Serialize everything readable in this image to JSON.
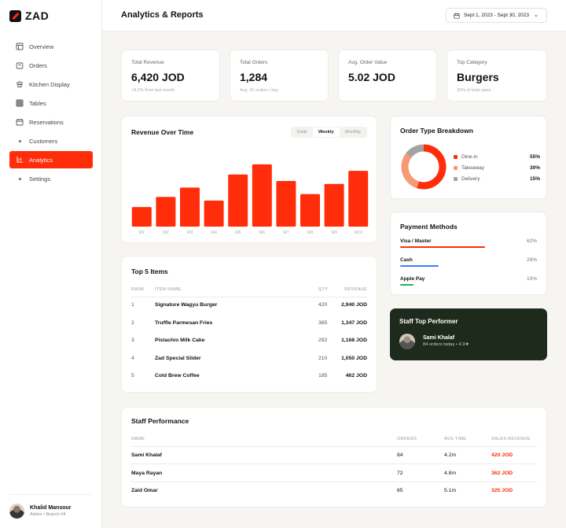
{
  "app": {
    "brand": "ZAD"
  },
  "sidebar": {
    "items": [
      {
        "label": "Overview",
        "icon": "layout-icon",
        "active": false
      },
      {
        "label": "Orders",
        "icon": "bag-icon",
        "active": false
      },
      {
        "label": "Kitchen Display",
        "icon": "chef-icon",
        "active": false
      },
      {
        "label": "Tables",
        "icon": "grid-icon",
        "active": false
      },
      {
        "label": "Reservations",
        "icon": "calendar-icon",
        "active": false
      },
      {
        "label": "Customers",
        "icon": "dot-icon",
        "active": false
      },
      {
        "label": "Analytics",
        "icon": "chart-icon",
        "active": true
      },
      {
        "label": "Settings",
        "icon": "dot-icon",
        "active": false
      }
    ],
    "user": {
      "name": "Khalid Mansour",
      "role": "Admin • Branch 04"
    }
  },
  "header": {
    "title": "Analytics & Reports",
    "date_range": "Sept 1, 2023 - Sept 30, 2023"
  },
  "stats": [
    {
      "label": "Total Revenue",
      "value": "6,420 JOD",
      "sub": "+8.2% from last month"
    },
    {
      "label": "Total Orders",
      "value": "1,284",
      "sub": "Avg. 42 orders / day"
    },
    {
      "label": "Avg. Order Value",
      "value": "5.02 JOD",
      "sub": ""
    },
    {
      "label": "Top Category",
      "value": "Burgers",
      "sub": "35% of total sales"
    }
  ],
  "revenue": {
    "title": "Revenue Over Time",
    "tabs": [
      "Daily",
      "Weekly",
      "Monthly"
    ],
    "active_tab": "Weekly"
  },
  "chart_data": {
    "type": "bar",
    "categories": [
      "W1",
      "W2",
      "W3",
      "W4",
      "W5",
      "W6",
      "W7",
      "W8",
      "W9",
      "W10"
    ],
    "values": [
      27,
      41,
      54,
      36,
      72,
      86,
      63,
      45,
      59,
      77
    ],
    "title": "Revenue Over Time",
    "xlabel": "",
    "ylabel": "",
    "ylim": [
      0,
      100
    ],
    "grid": false,
    "color": "#ff2d0a"
  },
  "order_type": {
    "title": "Order Type Breakdown",
    "segments": [
      {
        "name": "Dine-in",
        "pct": "55%",
        "value": 55,
        "color": "#ff2d0a"
      },
      {
        "name": "Takeaway",
        "pct": "30%",
        "value": 30,
        "color": "#f59a73"
      },
      {
        "name": "Delivery",
        "pct": "15%",
        "value": 15,
        "color": "#a3a3a3"
      }
    ]
  },
  "payment": {
    "title": "Payment Methods",
    "methods": [
      {
        "name": "Visa / Master",
        "pct": "62%",
        "value": 0.62,
        "color": "#ff2d0a"
      },
      {
        "name": "Cash",
        "pct": "28%",
        "value": 0.28,
        "color": "#3b7ff5"
      },
      {
        "name": "Apple Pay",
        "pct": "10%",
        "value": 0.1,
        "color": "#20b26b"
      }
    ]
  },
  "staff_top": {
    "title": "Staff Top Performer",
    "name": "Sami Khalaf",
    "sub": "84 orders today • 4.9★"
  },
  "top_items": {
    "title": "Top 5 Items",
    "headers": {
      "rank": "RANK",
      "name": "ITEM NAME",
      "qty": "QTY",
      "revenue": "REVENUE"
    },
    "rows": [
      {
        "rank": "1",
        "name": "Signature Wagyu Burger",
        "qty": "420",
        "revenue": "2,940 JOD"
      },
      {
        "rank": "2",
        "name": "Truffle Parmesan Fries",
        "qty": "385",
        "revenue": "1,347 JOD"
      },
      {
        "rank": "3",
        "name": "Pistachio Milk Cake",
        "qty": "292",
        "revenue": "1,168 JOD"
      },
      {
        "rank": "4",
        "name": "Zad Special Slider",
        "qty": "210",
        "revenue": "1,050 JOD"
      },
      {
        "rank": "5",
        "name": "Cold Brew Coffee",
        "qty": "185",
        "revenue": "462 JOD"
      }
    ]
  },
  "staff": {
    "title": "Staff Performance",
    "headers": {
      "name": "NAME",
      "orders": "ORDERS",
      "avg_time": "AVG TIME",
      "sales": "SALES REVENUE"
    },
    "rows": [
      {
        "name": "Sami Khalaf",
        "orders": "84",
        "avg_time": "4.2m",
        "sales": "420 JOD"
      },
      {
        "name": "Maya Rayan",
        "orders": "72",
        "avg_time": "4.8m",
        "sales": "362 JOD"
      },
      {
        "name": "Zaid Omar",
        "orders": "65",
        "avg_time": "5.1m",
        "sales": "325 JOD"
      }
    ]
  }
}
